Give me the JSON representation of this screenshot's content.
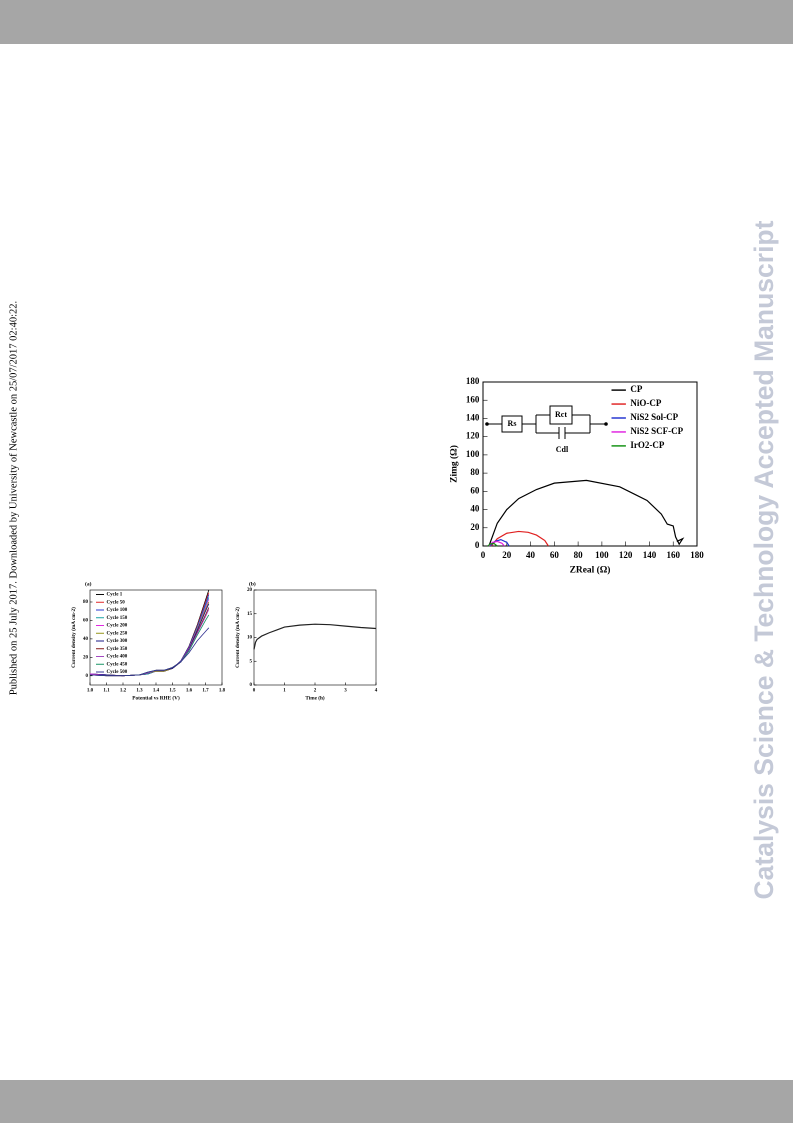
{
  "side_note": "Published on 25 July 2017. Downloaded by University of Newcastle on 25/07/2017 02:40:22.",
  "watermark": "Catalysis Science & Technology Accepted Manuscript",
  "chart_data": [
    {
      "type": "line",
      "x_label": "ZReal (Ω)",
      "y_label": "Zimg (Ω)",
      "inset_labels": [
        "Rs",
        "Rct",
        "Cdl"
      ],
      "xlim": [
        0,
        180
      ],
      "xticks": [
        0,
        20,
        40,
        60,
        80,
        100,
        120,
        140,
        160,
        180
      ],
      "ylim": [
        0,
        180
      ],
      "yticks": [
        0,
        20,
        40,
        60,
        80,
        100,
        120,
        140,
        160,
        180
      ],
      "legend": "upper right",
      "series": [
        {
          "name": "CP",
          "color": "#000000",
          "x": [
            5,
            12,
            20,
            30,
            45,
            60,
            87,
            115,
            138,
            150,
            155,
            160,
            162,
            165,
            168,
            163
          ],
          "values": [
            0,
            25,
            40,
            52,
            62,
            69,
            72,
            65,
            50,
            35,
            24,
            22,
            10,
            2,
            8,
            5
          ]
        },
        {
          "name": "NiO-CP",
          "color": "#e02020",
          "x": [
            7,
            12,
            20,
            30,
            38,
            45,
            52,
            55
          ],
          "values": [
            0,
            8,
            14,
            16,
            15,
            12,
            6,
            0
          ]
        },
        {
          "name": "NiS2 Sol-CP",
          "color": "#2030d0",
          "x": [
            6,
            10,
            15,
            20,
            22
          ],
          "values": [
            0,
            5,
            7,
            4,
            0
          ]
        },
        {
          "name": "NiS2 SCF-CP",
          "color": "#e020e0",
          "x": [
            5,
            8,
            12,
            16,
            18
          ],
          "values": [
            0,
            4,
            5,
            3,
            0
          ]
        },
        {
          "name": "IrO2-CP",
          "color": "#109010",
          "x": [
            4,
            6,
            9,
            12
          ],
          "values": [
            0,
            2,
            3,
            0
          ]
        }
      ]
    },
    {
      "type": "line",
      "panel": "(a)",
      "x_label": "Potential vs RHE (V)",
      "y_label": "Current density (mA cm-2)",
      "xlim": [
        1,
        1.8
      ],
      "xticks": [
        {
          "value": 1,
          "label": "1.0"
        },
        1.1,
        1.2,
        1.3,
        1.4,
        1.5,
        1.6,
        1.7,
        1.8
      ],
      "ylim": [
        -10,
        93
      ],
      "yticks": [
        0,
        20,
        40,
        60,
        80
      ],
      "legend": "upper left",
      "x": [
        1.0,
        1.1,
        1.2,
        1.3,
        1.35,
        1.4,
        1.45,
        1.5,
        1.55,
        1.6,
        1.65,
        1.7,
        1.72
      ],
      "series": [
        {
          "name": "Cycle 1",
          "color": "#000000",
          "values": [
            2,
            1,
            0,
            1,
            2,
            5,
            5,
            8,
            16,
            32,
            55,
            82,
            93
          ]
        },
        {
          "name": "Cycle 50",
          "color": "#e02020",
          "values": [
            2,
            1,
            0,
            1,
            2,
            5,
            5,
            8,
            16,
            31,
            54,
            80,
            90
          ]
        },
        {
          "name": "Cycle 100",
          "color": "#2030d0",
          "values": [
            2,
            1,
            0,
            1,
            2,
            5,
            5,
            8,
            16,
            31,
            53,
            78,
            88
          ]
        },
        {
          "name": "Cycle 150",
          "color": "#10a0a0",
          "values": [
            2,
            1,
            0,
            1,
            2,
            5,
            5,
            8,
            15,
            30,
            52,
            76,
            85
          ]
        },
        {
          "name": "Cycle 200",
          "color": "#e020e0",
          "values": [
            2,
            1,
            0,
            1,
            3,
            5,
            5,
            8,
            15,
            30,
            51,
            74,
            83
          ]
        },
        {
          "name": "Cycle 250",
          "color": "#909010",
          "values": [
            1,
            1,
            0,
            1,
            3,
            5,
            5,
            8,
            15,
            29,
            50,
            72,
            80
          ]
        },
        {
          "name": "Cycle 300",
          "color": "#101080",
          "values": [
            1,
            1,
            0,
            1,
            3,
            6,
            6,
            8,
            15,
            29,
            49,
            70,
            78
          ]
        },
        {
          "name": "Cycle 350",
          "color": "#801010",
          "values": [
            1,
            0,
            0,
            1,
            3,
            6,
            6,
            9,
            15,
            28,
            47,
            66,
            74
          ]
        },
        {
          "name": "Cycle 400",
          "color": "#a040c0",
          "values": [
            1,
            0,
            0,
            1,
            3,
            6,
            6,
            9,
            15,
            28,
            46,
            64,
            72
          ]
        },
        {
          "name": "Cycle 450",
          "color": "#109060",
          "values": [
            1,
            0,
            0,
            1,
            4,
            6,
            6,
            9,
            15,
            27,
            44,
            60,
            66
          ]
        },
        {
          "name": "Cycle 500",
          "color": "#303090",
          "values": [
            1,
            0,
            0,
            1,
            4,
            6,
            6,
            9,
            15,
            25,
            38,
            48,
            52
          ]
        }
      ]
    },
    {
      "type": "line",
      "panel": "(b)",
      "x_label": "Time (h)",
      "y_label": "Current density (mA cm-2)",
      "xlim": [
        0,
        4
      ],
      "xticks": [
        0,
        1,
        2,
        3,
        4
      ],
      "ylim": [
        0,
        20
      ],
      "yticks": [
        0,
        5,
        10,
        15,
        20
      ],
      "x": [
        0,
        0.05,
        0.1,
        0.25,
        0.5,
        0.75,
        1,
        1.5,
        2,
        2.5,
        3,
        3.5,
        4
      ],
      "values": [
        7.5,
        9,
        9.6,
        10.3,
        11,
        11.6,
        12.2,
        12.6,
        12.8,
        12.7,
        12.4,
        12.1,
        11.9
      ],
      "color": "#222222"
    }
  ]
}
